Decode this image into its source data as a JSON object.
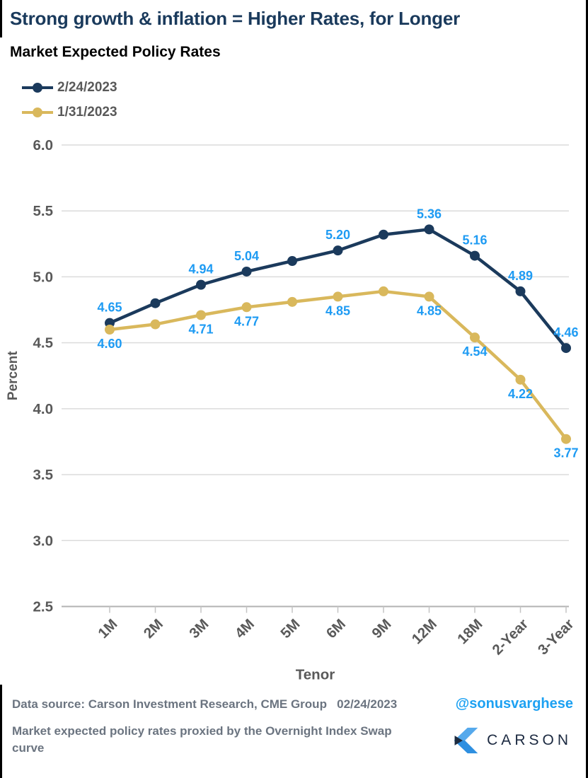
{
  "header": {
    "title": "Strong growth & inflation = Higher Rates, for Longer",
    "subtitle": "Market Expected Policy Rates"
  },
  "legend": {
    "items": [
      {
        "label": "2/24/2023",
        "color": "#1B3A5C"
      },
      {
        "label": "1/31/2023",
        "color": "#D9B85C"
      }
    ]
  },
  "chart_data": {
    "type": "line",
    "title": "Market Expected Policy Rates",
    "xlabel": "Tenor",
    "ylabel": "Percent",
    "ylim": [
      2.5,
      6.0
    ],
    "ytick_step": 0.5,
    "grid": true,
    "legend_position": "top-left",
    "categories": [
      "1M",
      "2M",
      "3M",
      "4M",
      "5M",
      "6M",
      "9M",
      "12M",
      "18M",
      "2-Year",
      "3-Year"
    ],
    "series": [
      {
        "name": "2/24/2023",
        "color": "#1B3A5C",
        "marker": "circle",
        "label_position": "above",
        "values": [
          4.65,
          4.8,
          4.94,
          5.04,
          5.12,
          5.2,
          5.32,
          5.36,
          5.16,
          4.89,
          4.46
        ],
        "data_labels": [
          "4.65",
          null,
          "4.94",
          "5.04",
          null,
          "5.20",
          null,
          "5.36",
          "5.16",
          "4.89",
          "4.46"
        ]
      },
      {
        "name": "1/31/2023",
        "color": "#D9B85C",
        "marker": "circle",
        "label_position": "below",
        "values": [
          4.6,
          4.64,
          4.71,
          4.77,
          4.81,
          4.85,
          4.89,
          4.85,
          4.54,
          4.22,
          3.77
        ],
        "data_labels": [
          "4.60",
          null,
          "4.71",
          "4.77",
          null,
          "4.85",
          null,
          "4.85",
          "4.54",
          "4.22",
          "3.77"
        ]
      }
    ],
    "data_label_color": "#1E9BF3",
    "axis_text_color": "#595959",
    "grid_color": "#DBDBDB",
    "axis_line_color": "#B3B3B3"
  },
  "footer": {
    "data_source": "Data source: Carson Investment Research, CME Group   02/24/2023",
    "handle": "@sonusvarghese",
    "note": "Market expected policy rates proxied by the Overnight Index Swap curve",
    "logo_text": "CARSON"
  },
  "colors": {
    "title_navy": "#1A3A5C",
    "handle_blue": "#1DA1F2",
    "footer_gray": "#6B7480",
    "logo_light_blue": "#55A9EC",
    "logo_mid_blue": "#2E8FE0",
    "logo_navy": "#1D2B3F"
  }
}
